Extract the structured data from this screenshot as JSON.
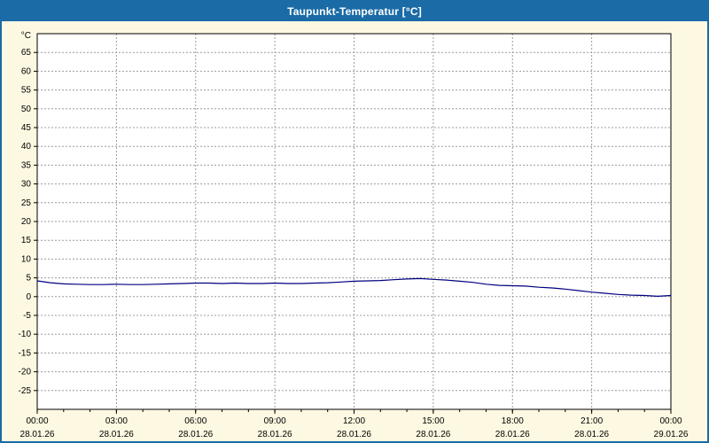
{
  "window": {
    "title": "Taupunkt-Temperatur [°C]"
  },
  "colors": {
    "titlebar": "#1a6ba6",
    "window_border": "#1a6ba6",
    "background": "#fdf8e1",
    "plot_background": "#ffffff",
    "plot_border": "#000000",
    "grid": "#9c9c9c",
    "line": "#000080",
    "text": "#000000"
  },
  "chart_data": {
    "type": "line",
    "title": "Taupunkt-Temperatur [°C]",
    "ylabel": "",
    "xlabel": "",
    "y_unit_label": "°C",
    "ylim": [
      -30,
      70
    ],
    "x_range": [
      0,
      24
    ],
    "grid": "dashed",
    "legend_position": "none",
    "y_ticks": [
      65,
      60,
      55,
      50,
      45,
      40,
      35,
      30,
      25,
      20,
      15,
      10,
      5,
      0,
      -5,
      -10,
      -15,
      -20,
      -25
    ],
    "x_ticks": [
      {
        "hour": 0,
        "time": "00:00",
        "date": "28.01.26"
      },
      {
        "hour": 3,
        "time": "03:00",
        "date": "28.01.26"
      },
      {
        "hour": 6,
        "time": "06:00",
        "date": "28.01.26"
      },
      {
        "hour": 9,
        "time": "09:00",
        "date": "28.01.26"
      },
      {
        "hour": 12,
        "time": "12:00",
        "date": "28.01.26"
      },
      {
        "hour": 15,
        "time": "15:00",
        "date": "28.01.26"
      },
      {
        "hour": 18,
        "time": "18:00",
        "date": "28.01.26"
      },
      {
        "hour": 21,
        "time": "21:00",
        "date": "28.01.26"
      },
      {
        "hour": 24,
        "time": "00:00",
        "date": "29.01.26"
      }
    ],
    "series": [
      {
        "name": "Taupunkt-Temperatur",
        "color": "#000080",
        "points": [
          [
            0,
            4.2
          ],
          [
            0.5,
            3.7
          ],
          [
            1,
            3.4
          ],
          [
            1.5,
            3.3
          ],
          [
            2,
            3.2
          ],
          [
            2.5,
            3.2
          ],
          [
            3,
            3.3
          ],
          [
            3.5,
            3.2
          ],
          [
            4,
            3.2
          ],
          [
            4.5,
            3.3
          ],
          [
            5,
            3.4
          ],
          [
            5.5,
            3.5
          ],
          [
            6,
            3.6
          ],
          [
            6.5,
            3.6
          ],
          [
            7,
            3.5
          ],
          [
            7.5,
            3.6
          ],
          [
            8,
            3.5
          ],
          [
            8.5,
            3.5
          ],
          [
            9,
            3.6
          ],
          [
            9.5,
            3.5
          ],
          [
            10,
            3.5
          ],
          [
            10.5,
            3.6
          ],
          [
            11,
            3.7
          ],
          [
            11.5,
            3.9
          ],
          [
            12,
            4.1
          ],
          [
            12.5,
            4.2
          ],
          [
            13,
            4.3
          ],
          [
            13.5,
            4.5
          ],
          [
            14,
            4.7
          ],
          [
            14.5,
            4.8
          ],
          [
            15,
            4.6
          ],
          [
            15.5,
            4.4
          ],
          [
            16,
            4.1
          ],
          [
            16.5,
            3.8
          ],
          [
            17,
            3.3
          ],
          [
            17.5,
            3.0
          ],
          [
            18,
            2.9
          ],
          [
            18.5,
            2.8
          ],
          [
            19,
            2.5
          ],
          [
            19.5,
            2.3
          ],
          [
            20,
            2.0
          ],
          [
            20.5,
            1.6
          ],
          [
            21,
            1.2
          ],
          [
            21.5,
            0.9
          ],
          [
            22,
            0.6
          ],
          [
            22.5,
            0.4
          ],
          [
            23,
            0.3
          ],
          [
            23.5,
            0.1
          ],
          [
            24,
            0.3
          ]
        ]
      }
    ]
  }
}
